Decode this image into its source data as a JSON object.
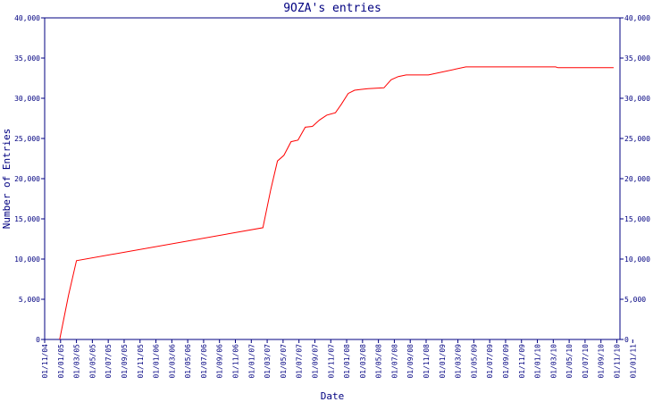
{
  "chart_data": {
    "type": "line",
    "title": "9OZA's entries",
    "y_label": "Number of Entries",
    "x_label": "Date",
    "color": "#ff0000",
    "axis_color": "#000080",
    "x": [
      "28/12/04",
      "01/02/05",
      "01/03/05",
      "15/02/07",
      "15/03/07",
      "10/04/07",
      "04/05/07",
      "01/06/07",
      "28/06/07",
      "25/07/07",
      "22/08/07",
      "19/09/07",
      "16/10/07",
      "19/11/07",
      "10/12/07",
      "07/01/08",
      "01/02/08",
      "25/02/08",
      "22/03/08",
      "22/05/08",
      "19/06/08",
      "16/07/08",
      "16/08/08",
      "10/11/08",
      "01/04/09",
      "10/03/10",
      "19/03/10",
      "19/10/10"
    ],
    "values": [
      0,
      5500,
      9800,
      13900,
      18700,
      22200,
      22900,
      24600,
      24800,
      26400,
      26500,
      27300,
      27900,
      28200,
      29200,
      30600,
      31000,
      31100,
      31200,
      31300,
      32300,
      32700,
      32900,
      32900,
      33900,
      33900,
      33800,
      33800
    ],
    "xlim": [
      "01/11/04",
      "13/11/10"
    ],
    "xticks": [
      "01/11/04",
      "01/01/05",
      "01/03/05",
      "01/05/05",
      "01/07/05",
      "01/09/05",
      "01/11/05",
      "01/01/06",
      "01/03/06",
      "01/05/06",
      "01/07/06",
      "01/09/06",
      "01/11/06",
      "01/01/07",
      "01/03/07",
      "01/05/07",
      "01/07/07",
      "01/09/07",
      "01/11/07",
      "01/01/08",
      "01/03/08",
      "01/05/08",
      "01/07/08",
      "01/09/08",
      "01/11/08",
      "01/01/09",
      "01/03/09",
      "01/05/09",
      "01/07/09",
      "01/09/09",
      "01/11/09",
      "01/01/10",
      "01/03/10",
      "01/05/10",
      "01/07/10",
      "01/09/10",
      "01/11/10",
      "01/01/11"
    ],
    "ylim": [
      0,
      40000
    ],
    "yticks": [
      0,
      {
        "value": 5000,
        "label": "5,000"
      },
      {
        "value": 10000,
        "label": "10,000"
      },
      {
        "value": 15000,
        "label": "15,000"
      },
      {
        "value": 20000,
        "label": "20,000"
      },
      {
        "value": 25000,
        "label": "25,000"
      },
      {
        "value": 30000,
        "label": "30,000"
      },
      {
        "value": 35000,
        "label": "35,000"
      },
      {
        "value": 40000,
        "label": "40,000"
      }
    ]
  }
}
